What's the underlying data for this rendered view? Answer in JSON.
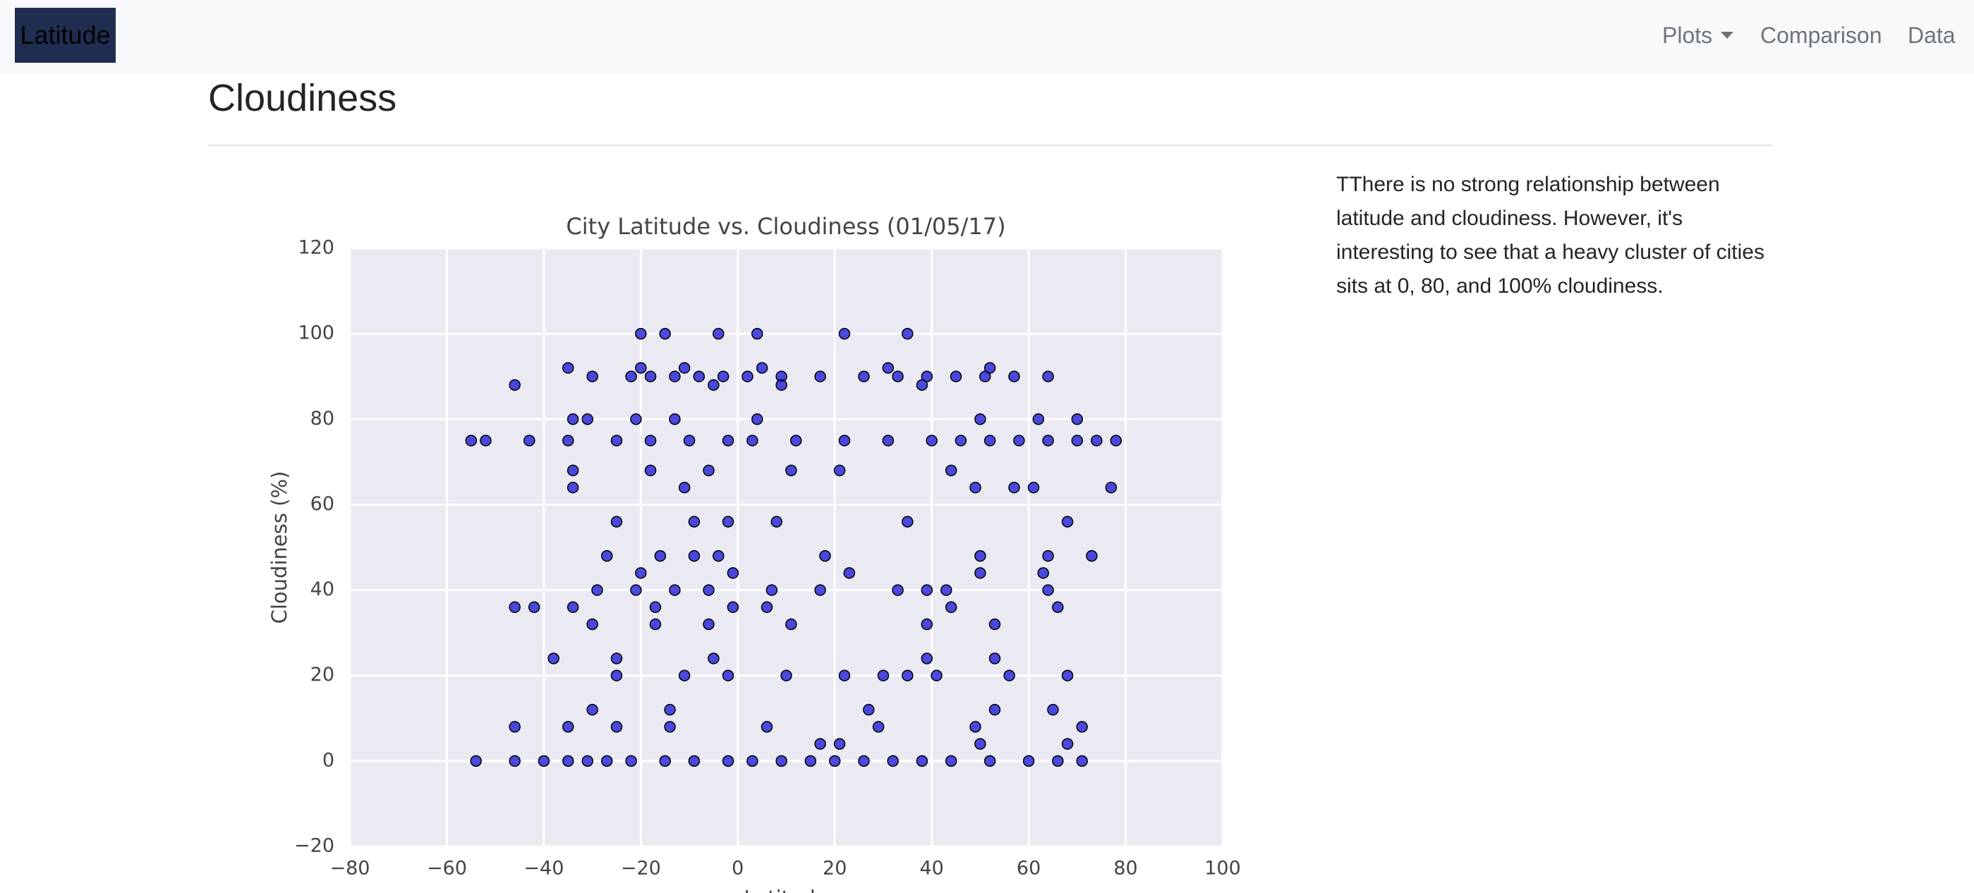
{
  "navbar": {
    "brand": "Latitude",
    "items": [
      "Plots",
      "Comparison",
      "Data"
    ]
  },
  "heading": "Cloudiness",
  "description": "TThere is no strong relationship between latitude and cloudiness. However, it's interesting to see that a heavy cluster of cities sits at 0, 80, and 100% cloudiness.",
  "chart_data": {
    "type": "scatter",
    "title": "City Latitude vs. Cloudiness (01/05/17)",
    "x_label": "Latitude",
    "y_label": "Cloudiness (%)",
    "color": "#1f1fd6",
    "grid": true,
    "xlim": [
      -80,
      100
    ],
    "ylim": [
      -20,
      120
    ],
    "xticks": [
      {
        "value": -80,
        "label": "−80"
      },
      {
        "value": -60,
        "label": "−60"
      },
      {
        "value": -40,
        "label": "−40"
      },
      {
        "value": -20,
        "label": "−20"
      },
      0,
      20,
      40,
      60,
      80,
      100
    ],
    "yticks": [
      {
        "value": -20,
        "label": "−20"
      },
      0,
      20,
      40,
      60,
      80,
      100,
      120
    ],
    "x": [
      -54,
      -46,
      -40,
      -35,
      -31,
      -27,
      -22,
      -15,
      -9,
      -2,
      3,
      9,
      15,
      20,
      26,
      32,
      38,
      44,
      52,
      60,
      66,
      71,
      -55,
      -52,
      -43,
      -35,
      -25,
      -18,
      -10,
      -2,
      3,
      12,
      22,
      31,
      40,
      46,
      52,
      58,
      64,
      70,
      74,
      78,
      -30,
      -22,
      -18,
      -13,
      -8,
      -3,
      2,
      9,
      17,
      26,
      33,
      39,
      45,
      51,
      57,
      64,
      -35,
      -20,
      -11,
      5,
      31,
      52,
      -20,
      -15,
      -4,
      4,
      22,
      35,
      -46,
      -5,
      9,
      38,
      -34,
      -31,
      -21,
      -13,
      4,
      50,
      62,
      70,
      -34,
      -18,
      -6,
      11,
      21,
      44,
      -34,
      -11,
      49,
      57,
      61,
      77,
      -25,
      -9,
      -2,
      8,
      35,
      68,
      -27,
      -16,
      -9,
      -4,
      18,
      50,
      64,
      73,
      -20,
      -1,
      23,
      50,
      63,
      -29,
      -21,
      -13,
      -6,
      7,
      17,
      33,
      39,
      43,
      64,
      -46,
      -42,
      -34,
      -17,
      -1,
      6,
      44,
      66,
      -30,
      -17,
      -6,
      11,
      39,
      53,
      -38,
      -25,
      -5,
      39,
      53,
      -25,
      -11,
      -2,
      10,
      22,
      30,
      35,
      41,
      56,
      68,
      -30,
      -14,
      27,
      53,
      65,
      -46,
      -35,
      -25,
      -14,
      6,
      29,
      49,
      71,
      17,
      21,
      50,
      68
    ],
    "values": [
      0,
      0,
      0,
      0,
      0,
      0,
      0,
      0,
      0,
      0,
      0,
      0,
      0,
      0,
      0,
      0,
      0,
      0,
      0,
      0,
      0,
      0,
      75,
      75,
      75,
      75,
      75,
      75,
      75,
      75,
      75,
      75,
      75,
      75,
      75,
      75,
      75,
      75,
      75,
      75,
      75,
      75,
      90,
      90,
      90,
      90,
      90,
      90,
      90,
      90,
      90,
      90,
      90,
      90,
      90,
      90,
      90,
      90,
      92,
      92,
      92,
      92,
      92,
      92,
      100,
      100,
      100,
      100,
      100,
      100,
      88,
      88,
      88,
      88,
      80,
      80,
      80,
      80,
      80,
      80,
      80,
      80,
      68,
      68,
      68,
      68,
      68,
      68,
      64,
      64,
      64,
      64,
      64,
      64,
      56,
      56,
      56,
      56,
      56,
      56,
      48,
      48,
      48,
      48,
      48,
      48,
      48,
      48,
      44,
      44,
      44,
      44,
      44,
      40,
      40,
      40,
      40,
      40,
      40,
      40,
      40,
      40,
      40,
      36,
      36,
      36,
      36,
      36,
      36,
      36,
      36,
      32,
      32,
      32,
      32,
      32,
      32,
      24,
      24,
      24,
      24,
      24,
      20,
      20,
      20,
      20,
      20,
      20,
      20,
      20,
      20,
      20,
      12,
      12,
      12,
      12,
      12,
      8,
      8,
      8,
      8,
      8,
      8,
      8,
      8,
      4,
      4,
      4,
      4
    ]
  }
}
